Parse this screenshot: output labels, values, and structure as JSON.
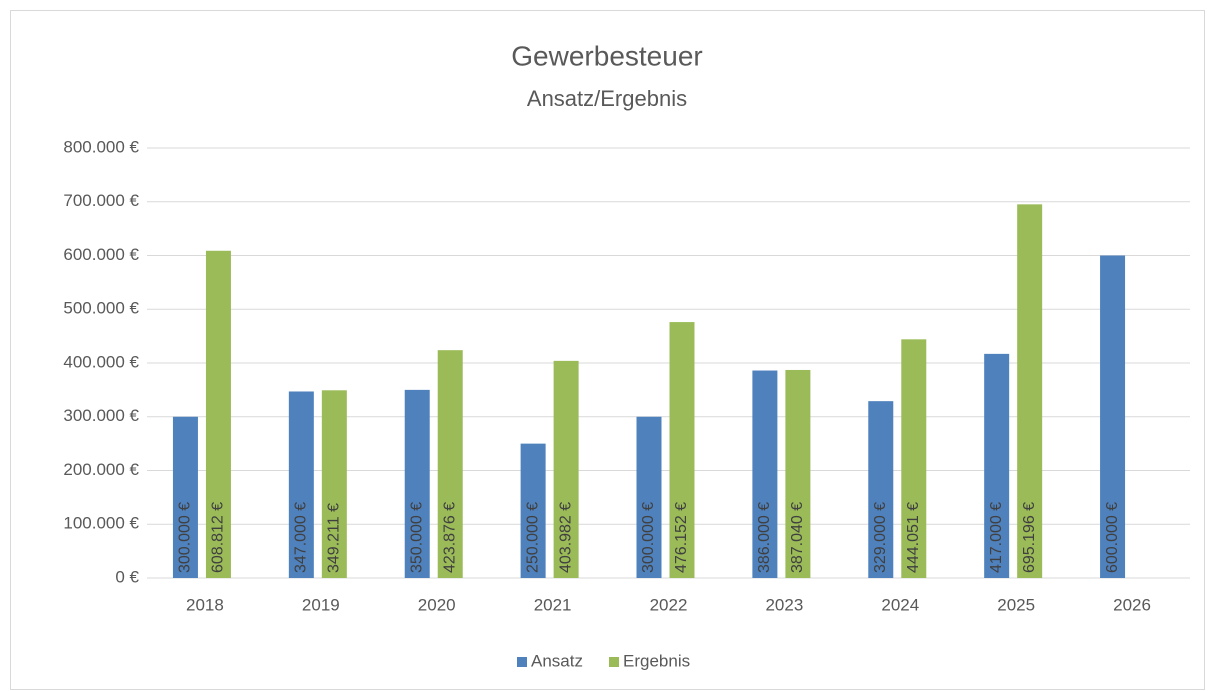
{
  "chart_data": {
    "type": "bar",
    "title": "Gewerbesteuer",
    "subtitle": "Ansatz/Ergebnis",
    "categories": [
      "2018",
      "2019",
      "2020",
      "2021",
      "2022",
      "2023",
      "2024",
      "2025",
      "2026"
    ],
    "series": [
      {
        "name": "Ansatz",
        "color": "#4f81bd",
        "values": [
          300000,
          347000,
          350000,
          250000,
          300000,
          386000,
          329000,
          417000,
          600000
        ],
        "value_labels": [
          "300.000 €",
          "347.000 €",
          "350.000 €",
          "250.000 €",
          "300.000 €",
          "386.000 €",
          "329.000 €",
          "417.000 €",
          "600.000 €"
        ]
      },
      {
        "name": "Ergebnis",
        "color": "#9bbb59",
        "values": [
          608812,
          349211,
          423876,
          403982,
          476152,
          387040,
          444051,
          695196,
          null
        ],
        "value_labels": [
          "608.812 €",
          "349.211 €",
          "423.876 €",
          "403.982 €",
          "476.152 €",
          "387.040 €",
          "444.051 €",
          "695.196 €",
          null
        ]
      }
    ],
    "ylim": [
      0,
      800000
    ],
    "yticks": [
      {
        "value": 0,
        "label": "0 €"
      },
      {
        "value": 100000,
        "label": "100.000 €"
      },
      {
        "value": 200000,
        "label": "200.000 €"
      },
      {
        "value": 300000,
        "label": "300.000 €"
      },
      {
        "value": 400000,
        "label": "400.000 €"
      },
      {
        "value": 500000,
        "label": "500.000 €"
      },
      {
        "value": 600000,
        "label": "600.000 €"
      },
      {
        "value": 700000,
        "label": "700.000 €"
      },
      {
        "value": 800000,
        "label": "800.000 €"
      }
    ],
    "grid": true,
    "legend": "bottom"
  }
}
